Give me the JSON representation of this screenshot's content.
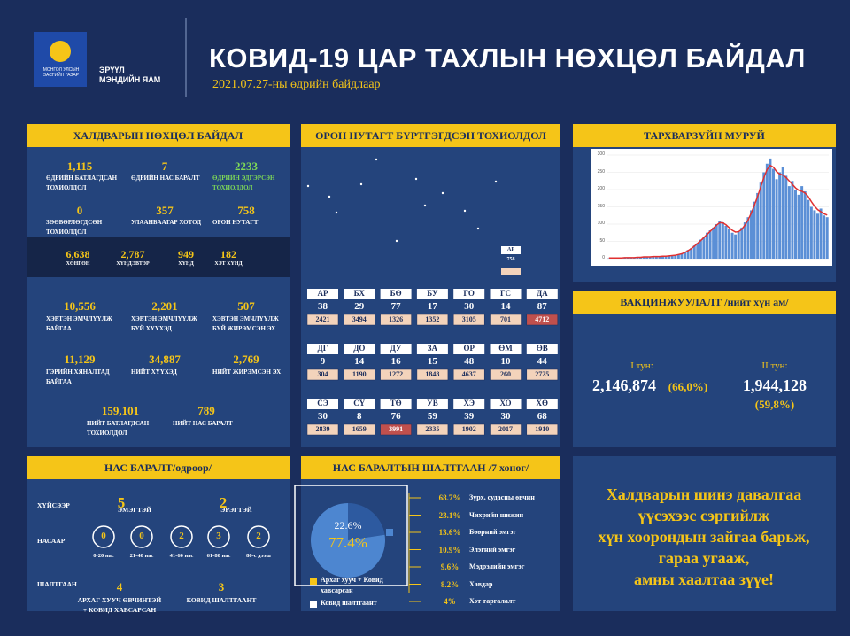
{
  "header": {
    "emblem": "МОНГОЛ УЛСЫН ЗАСГИЙН ГАЗАР",
    "ministry": [
      "ЭРҮҮЛ",
      "МЭНДИЙН ЯАМ"
    ],
    "title": "КОВИД-19 ЦАР ТАХЛЫН НӨХЦӨЛ БАЙДАЛ",
    "date": "2021.07.27-ны өдрийн байдлаар"
  },
  "situation": {
    "title": "ХАЛДВАРЫН НӨХЦӨЛ БАЙДАЛ",
    "top": [
      {
        "value": "1,115",
        "label": "ӨДРИЙН БАТЛАГДСАН ТОХИОЛДОЛ"
      },
      {
        "value": "7",
        "label": "ӨДРИЙН НАС БАРАЛТ"
      },
      {
        "value": "2233",
        "label": "ӨДРИЙН ЭДГЭРСЭН ТОХИОЛДОЛ"
      },
      {
        "value": "0",
        "label": "ЗӨӨВӨРЛӨГДСӨН ТОХИОЛДОЛ"
      },
      {
        "value": "357",
        "label": "УЛААНБААТАР ХОТОД"
      },
      {
        "value": "758",
        "label": "ОРОН НУТАГТ"
      }
    ],
    "band": [
      {
        "value": "6,638",
        "label": "ХӨНГӨН"
      },
      {
        "value": "2,787",
        "label": "ХҮНДЭВТЭР"
      },
      {
        "value": "949",
        "label": "ХҮНД"
      },
      {
        "value": "182",
        "label": "ХЭТ ХҮНД"
      }
    ],
    "bottom": [
      {
        "value": "10,556",
        "label": "ХЭВТЭН ЭМЧЛҮҮЛЖ БАЙГАА"
      },
      {
        "value": "2,201",
        "label": "ХЭВТЭН ЭМЧЛҮҮЛЖ БУЙ ХҮҮХЭД"
      },
      {
        "value": "507",
        "label": "ХЭВТЭН ЭМЧЛҮҮЛЖ БУЙ ЖИРЭМСЭН ЭХ"
      },
      {
        "value": "11,129",
        "label": "ГЭРИЙН ХЯНАЛТАД БАЙГАА"
      },
      {
        "value": "34,887",
        "label": "НИЙТ ХҮҮХЭД"
      },
      {
        "value": "2,769",
        "label": "НИЙТ ЖИРЭМСЭН ЭХ"
      },
      {
        "value": "159,101",
        "label": "НИЙТ БАТЛАГДСАН ТОХИОЛДОЛ"
      },
      {
        "value": "789",
        "label": "НИЙТ НАС БАРАЛТ"
      }
    ]
  },
  "regions": {
    "title": "ОРОН НУТАГТ БҮРТГЭГДСЭН ТОХИОЛДОЛ",
    "map_legend": [
      "АР",
      "758"
    ],
    "highlight_color": "#c0504d",
    "total_color": "#f3d3bb",
    "groups": [
      {
        "codes": [
          "АР",
          "БХ",
          "БӨ",
          "БУ",
          "ГО",
          "ГС",
          "ДА"
        ],
        "daily": [
          "38",
          "29",
          "77",
          "17",
          "30",
          "14",
          "87"
        ],
        "totals": [
          "2421",
          "3494",
          "1326",
          "1352",
          "3105",
          "701",
          "4712"
        ],
        "highlight": [
          6
        ]
      },
      {
        "codes": [
          "ДГ",
          "ДО",
          "ДУ",
          "ЗА",
          "ОР",
          "ӨМ",
          "ӨВ"
        ],
        "daily": [
          "9",
          "14",
          "16",
          "15",
          "48",
          "10",
          "44"
        ],
        "totals": [
          "304",
          "1190",
          "1272",
          "1848",
          "4637",
          "260",
          "2725"
        ],
        "highlight": []
      },
      {
        "codes": [
          "СЭ",
          "СҮ",
          "ТӨ",
          "УВ",
          "ХЭ",
          "ХО",
          "ХӨ"
        ],
        "daily": [
          "30",
          "8",
          "76",
          "59",
          "39",
          "30",
          "68"
        ],
        "totals": [
          "2839",
          "1659",
          "3991",
          "2335",
          "1902",
          "2017",
          "1910"
        ],
        "highlight": [
          2
        ]
      }
    ]
  },
  "epi_curve": {
    "title": "ТАРХВАРЗҮЙН МУРУЙ",
    "ylim": [
      0,
      300
    ],
    "yticks": [
      0,
      50,
      100,
      150,
      200,
      250,
      300
    ],
    "bar_color": "#5b8fd6",
    "line_color": "#e03030",
    "bars": [
      1,
      2,
      1,
      3,
      2,
      2,
      4,
      3,
      2,
      5,
      3,
      4,
      6,
      4,
      5,
      7,
      5,
      8,
      6,
      9,
      8,
      10,
      12,
      15,
      20,
      25,
      30,
      38,
      45,
      55,
      62,
      75,
      82,
      90,
      100,
      110,
      105,
      95,
      85,
      75,
      70,
      78,
      90,
      105,
      120,
      140,
      165,
      190,
      220,
      250,
      275,
      290,
      260,
      230,
      250,
      265,
      240,
      210,
      225,
      200,
      185,
      210,
      195,
      170,
      150,
      140,
      130,
      145,
      125,
      120
    ],
    "line": [
      2,
      2,
      2,
      2,
      2,
      3,
      3,
      3,
      3,
      4,
      4,
      5,
      5,
      5,
      6,
      6,
      6,
      7,
      7,
      8,
      9,
      10,
      12,
      14,
      18,
      23,
      29,
      36,
      44,
      52,
      61,
      70,
      79,
      88,
      97,
      104,
      104,
      98,
      90,
      82,
      77,
      78,
      85,
      97,
      112,
      132,
      155,
      180,
      208,
      235,
      258,
      270,
      265,
      252,
      245,
      242,
      235,
      225,
      215,
      205,
      198,
      195,
      190,
      180,
      165,
      152,
      142,
      136,
      130,
      126
    ]
  },
  "vaccination": {
    "title": "ВАКЦИНЖУУЛАЛТ /нийт хүн ам/",
    "doses": [
      {
        "label": "I тун:",
        "value": "2,146,874",
        "percent": "(66,0%)"
      },
      {
        "label": "II тун:",
        "value": "1,944,128",
        "percent": "(59,8%)"
      }
    ]
  },
  "deaths": {
    "title": "НАС БАРАЛТ/өдрөөр/",
    "sex_label": "ХҮЙСЭЭР",
    "sex": [
      {
        "value": "5",
        "label": "ЭМЭГТЭЙ"
      },
      {
        "value": "2",
        "label": "ЭРЭГТЭЙ"
      }
    ],
    "age_label": "НАСААР",
    "ages": [
      {
        "value": "0",
        "label": "0-20 нас"
      },
      {
        "value": "0",
        "label": "21-40 нас"
      },
      {
        "value": "2",
        "label": "41-60 нас"
      },
      {
        "value": "3",
        "label": "61-80 нас"
      },
      {
        "value": "2",
        "label": "80-с дээш"
      }
    ],
    "cause_label": "ШАЛТГААН",
    "causes": [
      {
        "value": "4",
        "label": "АРХАГ ХУУЧ ӨВЧИНТЭЙ + КОВИД ХАВСАРСАН"
      },
      {
        "value": "3",
        "label": "КОВИД ШАЛТГААНТ"
      }
    ]
  },
  "causes": {
    "title": "НАС БАРАЛТЫН ШАЛТГААН /7 хоног/",
    "pie": {
      "values": [
        22.6,
        77.4
      ],
      "labels": [
        "22.6%",
        "77.4%"
      ],
      "colors": [
        "#2d5aa0",
        "#4d86d0"
      ]
    },
    "legend": [
      {
        "label": "Архаг хууч + Ковид хавсарсан",
        "color": "#f5c518"
      },
      {
        "label": "Ковид шалтгаант",
        "color": "#ffffff"
      }
    ],
    "list": [
      {
        "percent": "68.7%",
        "label": "Зүрх, судасны өвчин"
      },
      {
        "percent": "23.1%",
        "label": "Чихрийн шижин"
      },
      {
        "percent": "13.6%",
        "label": "Бөөрний эмгэг"
      },
      {
        "percent": "10.9%",
        "label": "Элэгний эмгэг"
      },
      {
        "percent": "9.6%",
        "label": "Мэдрэлийн эмгэг"
      },
      {
        "percent": "8.2%",
        "label": "Хавдар"
      },
      {
        "percent": "4%",
        "label": "Хэт таргалалт"
      }
    ]
  },
  "message": [
    "Халдварын шинэ давалгаа",
    "үүсэхээс сэргийлж",
    "хүн хоорондын зайгаа барьж,",
    "гараа угааж,",
    "амны хаалтаа зүүе!"
  ]
}
